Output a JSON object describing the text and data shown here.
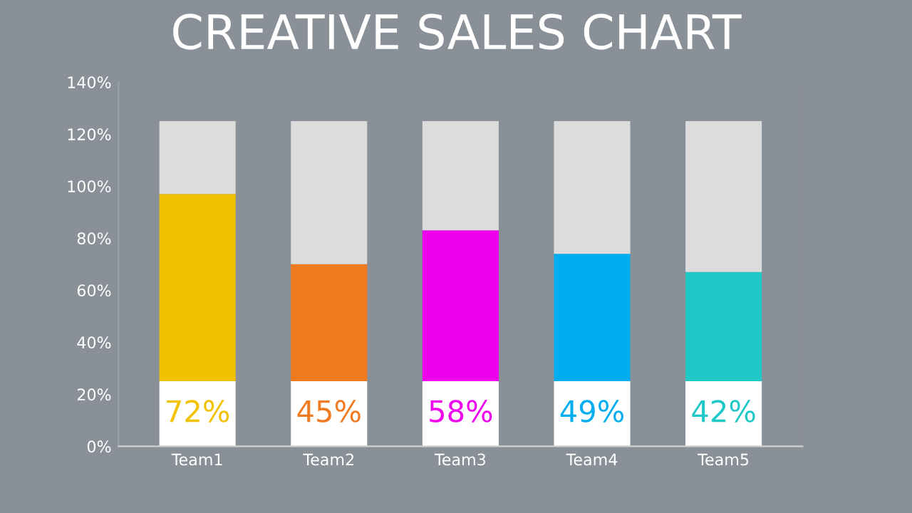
{
  "chart_data": {
    "type": "bar",
    "title": "CREATIVE SALES CHART",
    "stacked": true,
    "categories": [
      "Team1",
      "Team2",
      "Team3",
      "Team4",
      "Team5"
    ],
    "series": [
      {
        "color": "#ffffff",
        "values": [
          25,
          25,
          25,
          25,
          25
        ]
      },
      {
        "colors": [
          "#f2c200",
          "#f07a20",
          "#ee00ee",
          "#00aef0",
          "#20c8c8"
        ],
        "values": [
          72,
          45,
          58,
          49,
          42
        ],
        "value_labels": [
          "72%",
          "45%",
          "58%",
          "49%",
          "42%"
        ]
      },
      {
        "color": "#dcdcdc",
        "values": [
          28,
          55,
          42,
          51,
          58
        ]
      }
    ],
    "ylim": [
      0,
      140
    ],
    "yticks": [
      {
        "value": 0,
        "label": "0%"
      },
      {
        "value": 20,
        "label": "20%"
      },
      {
        "value": 40,
        "label": "40%"
      },
      {
        "value": 60,
        "label": "60%"
      },
      {
        "value": 80,
        "label": "80%"
      },
      {
        "value": 100,
        "label": "100%"
      },
      {
        "value": 120,
        "label": "120%"
      },
      {
        "value": 140,
        "label": "140%"
      }
    ],
    "grid": false,
    "legend": false
  }
}
